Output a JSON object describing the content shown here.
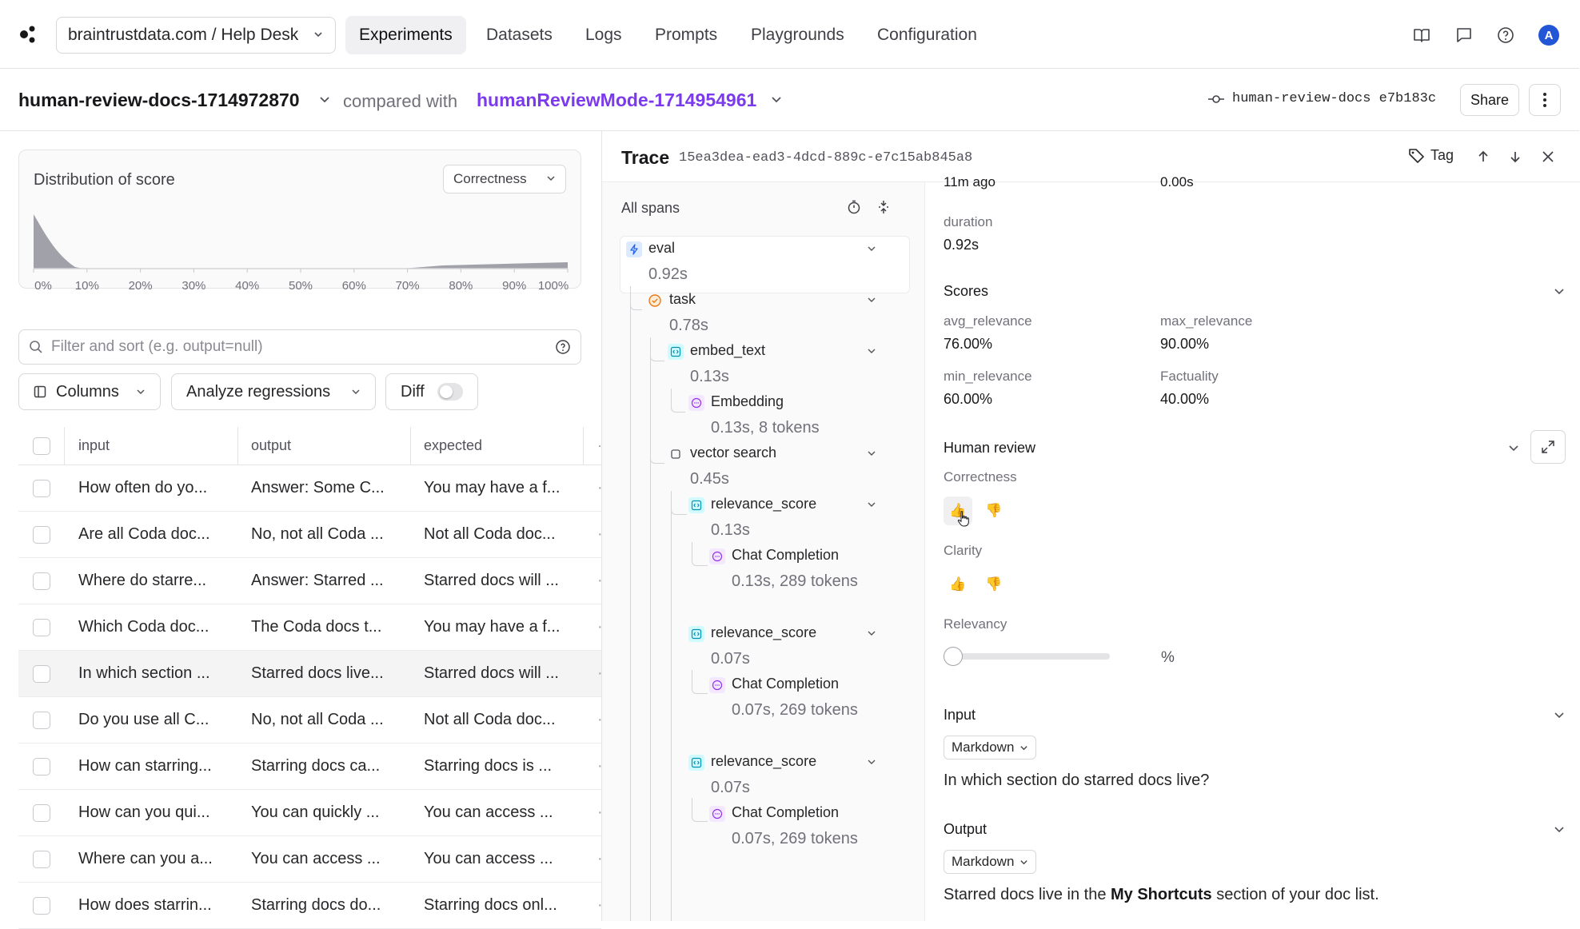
{
  "nav": {
    "project": "braintrustdata.com / Help Desk",
    "tabs": [
      {
        "label": "Experiments",
        "active": true
      },
      {
        "label": "Datasets"
      },
      {
        "label": "Logs"
      },
      {
        "label": "Prompts"
      },
      {
        "label": "Playgrounds"
      },
      {
        "label": "Configuration"
      }
    ],
    "avatar_initial": "A"
  },
  "experiment": {
    "name": "human-review-docs-1714972870",
    "compared_label": "compared with",
    "compared_name": "humanReviewMode-1714954961",
    "branch": "human-review-docs",
    "commit": "e7b183c",
    "share_label": "Share"
  },
  "distribution": {
    "title": "Distribution of score",
    "selected": "Correctness",
    "ticks": [
      "0%",
      "10%",
      "20%",
      "30%",
      "40%",
      "50%",
      "60%",
      "70%",
      "80%",
      "90%",
      "100%"
    ]
  },
  "filter": {
    "placeholder": "Filter and sort (e.g. output=null)"
  },
  "toolbar": {
    "columns_label": "Columns",
    "analyze_label": "Analyze regressions",
    "diff_label": "Diff",
    "diff_on": false
  },
  "table": {
    "headers": [
      "input",
      "output",
      "expected"
    ],
    "rows": [
      {
        "input": "How often do yo...",
        "output": "Answer: Some C...",
        "expected": "You may have a f..."
      },
      {
        "input": "Are all Coda doc...",
        "output": "No, not all Coda ...",
        "expected": "Not all Coda doc..."
      },
      {
        "input": "Where do starre...",
        "output": "Answer: Starred ...",
        "expected": "Starred docs will ..."
      },
      {
        "input": "Which Coda doc...",
        "output": "The Coda docs t...",
        "expected": "You may have a f..."
      },
      {
        "input": "In which section ...",
        "output": "Starred docs live...",
        "expected": "Starred docs will ..."
      },
      {
        "input": "Do you use all C...",
        "output": "No, not all Coda ...",
        "expected": "Not all Coda doc..."
      },
      {
        "input": "How can starring...",
        "output": "Starring docs ca...",
        "expected": "Starring docs is ..."
      },
      {
        "input": "How can you qui...",
        "output": "You can quickly ...",
        "expected": "You can access ..."
      },
      {
        "input": "Where can you a...",
        "output": "You can access ...",
        "expected": "You can access ..."
      },
      {
        "input": "How does starrin...",
        "output": "Starring docs do...",
        "expected": "Starring docs onl..."
      }
    ],
    "trailing": "·"
  },
  "trace": {
    "title": "Trace",
    "id": "15ea3dea-ead3-4dcd-889c-e7c15ab845a8",
    "tag_label": "Tag",
    "spans_title": "All spans",
    "spans": [
      {
        "name": "eval",
        "duration": "0.92s"
      },
      {
        "name": "task",
        "duration": "0.78s"
      },
      {
        "name": "embed_text",
        "duration": "0.13s"
      },
      {
        "name": "Embedding",
        "duration": "0.13s, 8 tokens"
      },
      {
        "name": "vector search",
        "duration": "0.45s"
      },
      {
        "name": "relevance_score",
        "duration": "0.13s"
      },
      {
        "name": "Chat Completion",
        "duration": "0.13s, 289 tokens"
      },
      {
        "name": "relevance_score",
        "duration": "0.07s"
      },
      {
        "name": "Chat Completion",
        "duration": "0.07s, 269 tokens"
      },
      {
        "name": "relevance_score",
        "duration": "0.07s"
      },
      {
        "name": "Chat Completion",
        "duration": "0.07s, 269 tokens"
      }
    ]
  },
  "detail": {
    "top_cut_left": "11m ago",
    "top_cut_right": "0.00s",
    "duration_label": "duration",
    "duration_value": "0.92s",
    "scores_title": "Scores",
    "scores": [
      {
        "label": "avg_relevance",
        "value": "76.00%"
      },
      {
        "label": "max_relevance",
        "value": "90.00%"
      },
      {
        "label": "min_relevance",
        "value": "60.00%"
      },
      {
        "label": "Factuality",
        "value": "40.00%"
      }
    ],
    "human_review_title": "Human review",
    "correctness_label": "Correctness",
    "clarity_label": "Clarity",
    "relevancy_label": "Relevancy",
    "relevancy_value": 0,
    "relevancy_unit": "%",
    "input_title": "Input",
    "input_format": "Markdown",
    "input_text": "In which section do starred docs live?",
    "output_title": "Output",
    "output_format": "Markdown",
    "output_text_pre": "Starred docs live in the ",
    "output_text_bold": "My Shortcuts",
    "output_text_post": " section of your doc list."
  }
}
